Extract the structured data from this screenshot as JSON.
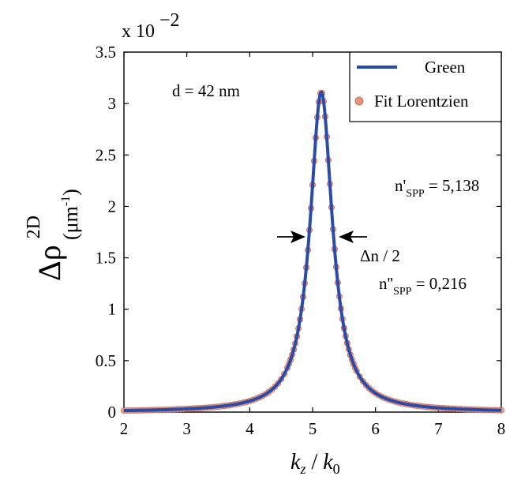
{
  "chart_data": {
    "type": "line",
    "exponent_label": {
      "base": "x 10",
      "exponent": "−2"
    },
    "xlabel": {
      "main_var": "k",
      "main_sub": "z",
      "sep": " / ",
      "ref_var": "k",
      "ref_sub": "0"
    },
    "ylabel": {
      "symbol": "Δρ",
      "sup": "2D",
      "unit_open": "(μm",
      "unit_sup": "-1",
      "unit_close": ")"
    },
    "xlim": [
      2,
      8
    ],
    "ylim": [
      0,
      3.5
    ],
    "xticks": [
      "2",
      "3",
      "4",
      "5",
      "6",
      "7",
      "8"
    ],
    "yticks": [
      "0",
      "0.5",
      "1",
      "1.5",
      "2",
      "2.5",
      "3",
      "3.5"
    ],
    "grid": false,
    "legend_position": "top-right",
    "legend": {
      "line": "Green",
      "markers": "Fit Lorentzien"
    },
    "annotations": {
      "thickness": "d = 42 nm",
      "n_real": {
        "pre": "n'",
        "sub": "SPP",
        "post": " = 5,138"
      },
      "n_imag": {
        "pre": "n''",
        "sub": "SPP",
        "post": " = 0,216"
      },
      "width": "Δn / 2"
    },
    "series": [
      {
        "name": "Green",
        "kind": "line",
        "color": "#2b4ba8",
        "model": "lorentzian",
        "x_range": [
          2,
          8
        ],
        "center": 5.138,
        "peak": 3.11,
        "half_width": 0.216
      },
      {
        "name": "Fit Lorentzien",
        "kind": "markers",
        "color": "#e8957d",
        "marker_edge": "#c9705c",
        "model": "lorentzian",
        "x_range": [
          2,
          8
        ],
        "center": 5.138,
        "peak": 3.11,
        "half_width": 0.216
      }
    ],
    "colors": {
      "line": "#2b4ba8",
      "marker": "#e8957d",
      "marker_edge": "#c9705c",
      "axis": "#000000",
      "arrow": "#000000"
    }
  }
}
